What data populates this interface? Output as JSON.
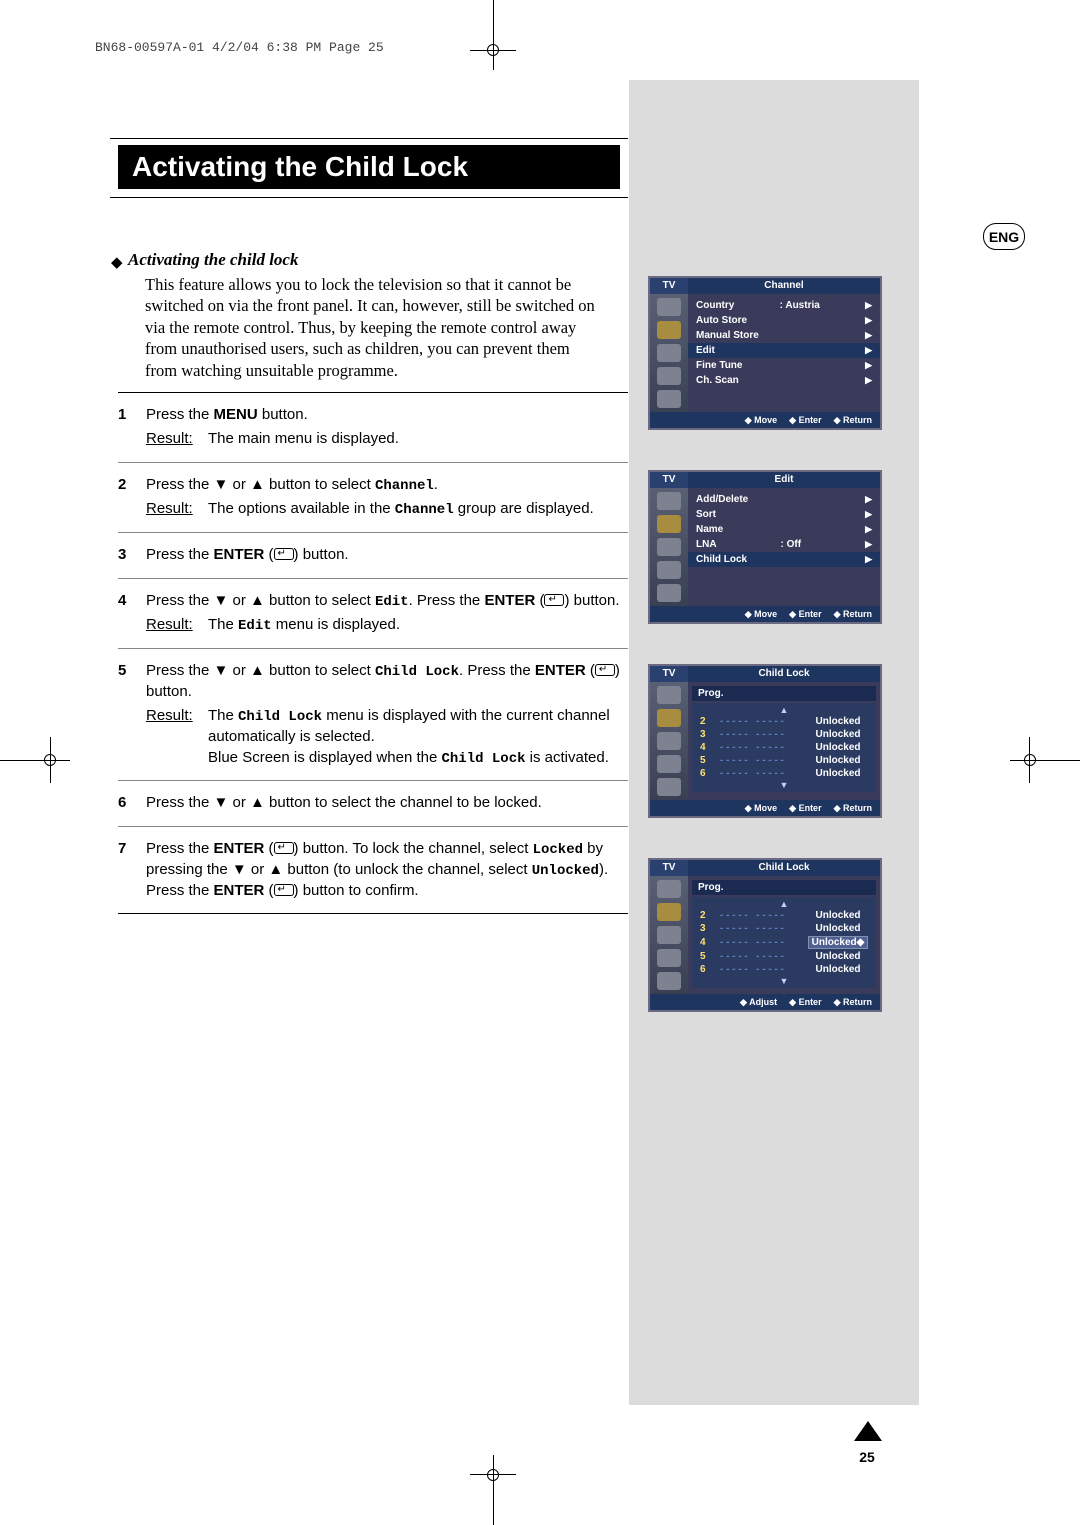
{
  "header": "BN68-00597A-01  4/2/04  6:38 PM  Page 25",
  "title": "Activating the Child Lock",
  "section_head": "Activating the child lock",
  "intro": "This feature allows you to lock the television so that it cannot be switched on via the front panel. It can, however, still be switched on via the remote control. Thus, by keeping the remote control away from unauthorised users, such as children, you can prevent them from watching unsuitable programme.",
  "eng": "ENG",
  "steps": [
    {
      "n": "1",
      "body": "Press the <b>MENU</b> button.",
      "result": "The main menu is displayed."
    },
    {
      "n": "2",
      "body": "Press the ▼ or ▲ button to select <span class='mono'>Channel</span>.",
      "result": "The options available in the <span class='mono'>Channel</span> group are displayed."
    },
    {
      "n": "3",
      "body": "Press the <b>ENTER</b> (<span class='enter-glyph'></span>) button."
    },
    {
      "n": "4",
      "body": "Press the ▼ or ▲ button to select <span class='mono'>Edit</span>. Press the <b>ENTER</b> (<span class='enter-glyph'></span>) button.",
      "result": "The <span class='mono'>Edit</span> menu is displayed."
    },
    {
      "n": "5",
      "body": "Press the ▼ or ▲ button to select <span class='mono'>Child Lock</span>. Press the <b>ENTER</b> (<span class='enter-glyph'></span>) button.",
      "result": "The <span class='mono'>Child Lock</span> menu is displayed with the current channel automatically is selected.<br>Blue Screen is displayed when the <span class='mono'>Child Lock</span> is activated."
    },
    {
      "n": "6",
      "body": "Press the ▼ or ▲ button to select the channel to be locked."
    },
    {
      "n": "7",
      "body": "Press the <b>ENTER</b> (<span class='enter-glyph'></span>) button. To lock the channel, select <span class='mono'>Locked</span> by pressing the ▼ or ▲ button (to unlock the channel, select <span class='mono'>Unlocked</span>). Press the <b>ENTER</b> (<span class='enter-glyph'></span>) button to confirm."
    }
  ],
  "result_label": "Result:",
  "osd": {
    "tv": "TV",
    "foot_move": "Move",
    "foot_enter": "Enter",
    "foot_return": "Return",
    "foot_adjust": "Adjust",
    "unlocked": "Unlocked",
    "prog": "Prog.",
    "menu1": {
      "title": "Channel",
      "rows": [
        {
          "l": "Country",
          "v": ":   Austria",
          "a": "▶"
        },
        {
          "l": "Auto Store",
          "v": "",
          "a": "▶"
        },
        {
          "l": "Manual Store",
          "v": "",
          "a": "▶"
        },
        {
          "l": "Edit",
          "v": "",
          "a": "▶",
          "sel": true
        },
        {
          "l": "Fine Tune",
          "v": "",
          "a": "▶"
        },
        {
          "l": "Ch. Scan",
          "v": "",
          "a": "▶"
        }
      ]
    },
    "menu2": {
      "title": "Edit",
      "rows": [
        {
          "l": "Add/Delete",
          "v": "",
          "a": "▶"
        },
        {
          "l": "Sort",
          "v": "",
          "a": "▶"
        },
        {
          "l": "Name",
          "v": "",
          "a": "▶"
        },
        {
          "l": "LNA",
          "v": ":   Off",
          "a": "▶"
        },
        {
          "l": "Child Lock",
          "v": "",
          "a": "▶",
          "sel": true
        }
      ]
    },
    "menu3": {
      "title": "Child Lock",
      "hilite": 2
    },
    "menu4": {
      "title": "Child Lock",
      "hilite": 3,
      "box": true
    }
  },
  "page_number": "25"
}
